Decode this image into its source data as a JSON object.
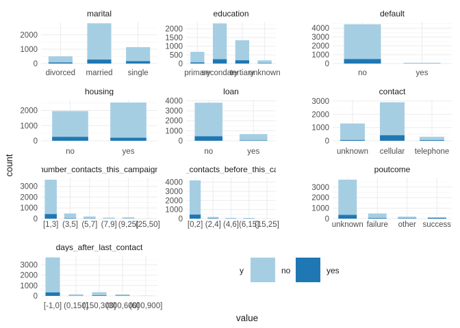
{
  "chart_data": {
    "type": "bar",
    "stacked": true,
    "grid": true,
    "xlabel": "value",
    "ylabel": "count",
    "legend": {
      "title": "y",
      "position": "bottom-right",
      "entries": [
        {
          "label": "no",
          "color": "#a6cee3"
        },
        {
          "label": "yes",
          "color": "#1f78b4"
        }
      ]
    },
    "panels": [
      {
        "title": "marital",
        "categories": [
          "divorced",
          "married",
          "single"
        ],
        "series": [
          {
            "name": "no",
            "values": [
              430,
              2520,
              975
            ]
          },
          {
            "name": "yes",
            "values": [
              75,
              280,
              165
            ]
          }
        ],
        "ylim": [
          0,
          2900
        ],
        "yticks": [
          0,
          1000,
          2000
        ]
      },
      {
        "title": "education",
        "categories": [
          "primary",
          "secondary",
          "tertiary",
          "unknown"
        ],
        "series": [
          {
            "name": "no",
            "values": [
              610,
              2060,
              1155,
              165
            ]
          },
          {
            "name": "yes",
            "values": [
              65,
              250,
              190,
              20
            ]
          }
        ],
        "ylim": [
          0,
          2400
        ],
        "yticks": [
          0,
          500,
          1000,
          1500,
          2000
        ]
      },
      {
        "title": "default",
        "categories": [
          "no",
          "yes"
        ],
        "series": [
          {
            "name": "no",
            "values": [
              3920,
              75
            ]
          },
          {
            "name": "yes",
            "values": [
              510,
              10
            ]
          }
        ],
        "ylim": [
          0,
          4700
        ],
        "yticks": [
          0,
          1000,
          2000,
          3000,
          4000
        ]
      },
      {
        "title": "housing",
        "categories": [
          "no",
          "yes"
        ],
        "series": [
          {
            "name": "no",
            "values": [
              1700,
              2320
            ]
          },
          {
            "name": "yes",
            "values": [
              260,
              200
            ]
          }
        ],
        "ylim": [
          0,
          2700
        ],
        "yticks": [
          0,
          1000,
          2000
        ]
      },
      {
        "title": "loan",
        "categories": [
          "no",
          "yes"
        ],
        "series": [
          {
            "name": "no",
            "values": [
              3360,
              630
            ]
          },
          {
            "name": "yes",
            "values": [
              450,
              40
            ]
          }
        ],
        "ylim": [
          0,
          4100
        ],
        "yticks": [
          0,
          1000,
          2000,
          3000,
          4000
        ]
      },
      {
        "title": "contact",
        "categories": [
          "unknown",
          "cellular",
          "telephone"
        ],
        "series": [
          {
            "name": "no",
            "values": [
              1250,
              2490,
              250
            ]
          },
          {
            "name": "yes",
            "values": [
              60,
              420,
              50
            ]
          }
        ],
        "ylim": [
          0,
          3100
        ],
        "yticks": [
          0,
          1000,
          2000,
          3000
        ]
      },
      {
        "title": "number_contacts_this_campaign",
        "categories": [
          "[1,3]",
          "(3,5]",
          "(5,7]",
          "(7,9]",
          "(9,25]",
          "(25,50]"
        ],
        "series": [
          {
            "name": "no",
            "values": [
              3180,
              440,
              180,
              85,
              120,
              10
            ]
          },
          {
            "name": "yes",
            "values": [
              430,
              35,
              20,
              6,
              8,
              1
            ]
          }
        ],
        "ylim": [
          0,
          3800
        ],
        "yticks": [
          0,
          1000,
          2000,
          3000
        ]
      },
      {
        "title": "number_contacts_before_this_campaign",
        "categories": [
          "[0,2]",
          "(2,4]",
          "(4,6]",
          "(6,15]",
          "(15,25]"
        ],
        "series": [
          {
            "name": "no",
            "values": [
              3760,
              150,
              55,
              50,
              5
            ]
          },
          {
            "name": "yes",
            "values": [
              450,
              40,
              20,
              20,
              2
            ]
          }
        ],
        "ylim": [
          0,
          4500
        ],
        "yticks": [
          0,
          1000,
          2000,
          3000,
          4000
        ]
      },
      {
        "title": "poutcome",
        "categories": [
          "unknown",
          "failure",
          "other",
          "success"
        ],
        "series": [
          {
            "name": "no",
            "values": [
              3350,
              430,
              160,
              50
            ]
          },
          {
            "name": "yes",
            "values": [
              360,
              60,
              35,
              80
            ]
          }
        ],
        "ylim": [
          0,
          3900
        ],
        "yticks": [
          0,
          1000,
          2000,
          3000
        ]
      },
      {
        "title": "days_after_last_contact",
        "categories": [
          "[-1,0]",
          "(0,150]",
          "(150,300]",
          "(300,600]",
          "(600,900]"
        ],
        "series": [
          {
            "name": "no",
            "values": [
              3380,
              130,
              300,
              120,
              10
            ]
          },
          {
            "name": "yes",
            "values": [
              340,
              20,
              55,
              30,
              3
            ]
          }
        ],
        "ylim": [
          0,
          3900
        ],
        "yticks": [
          0,
          1000,
          2000,
          3000
        ]
      }
    ]
  }
}
